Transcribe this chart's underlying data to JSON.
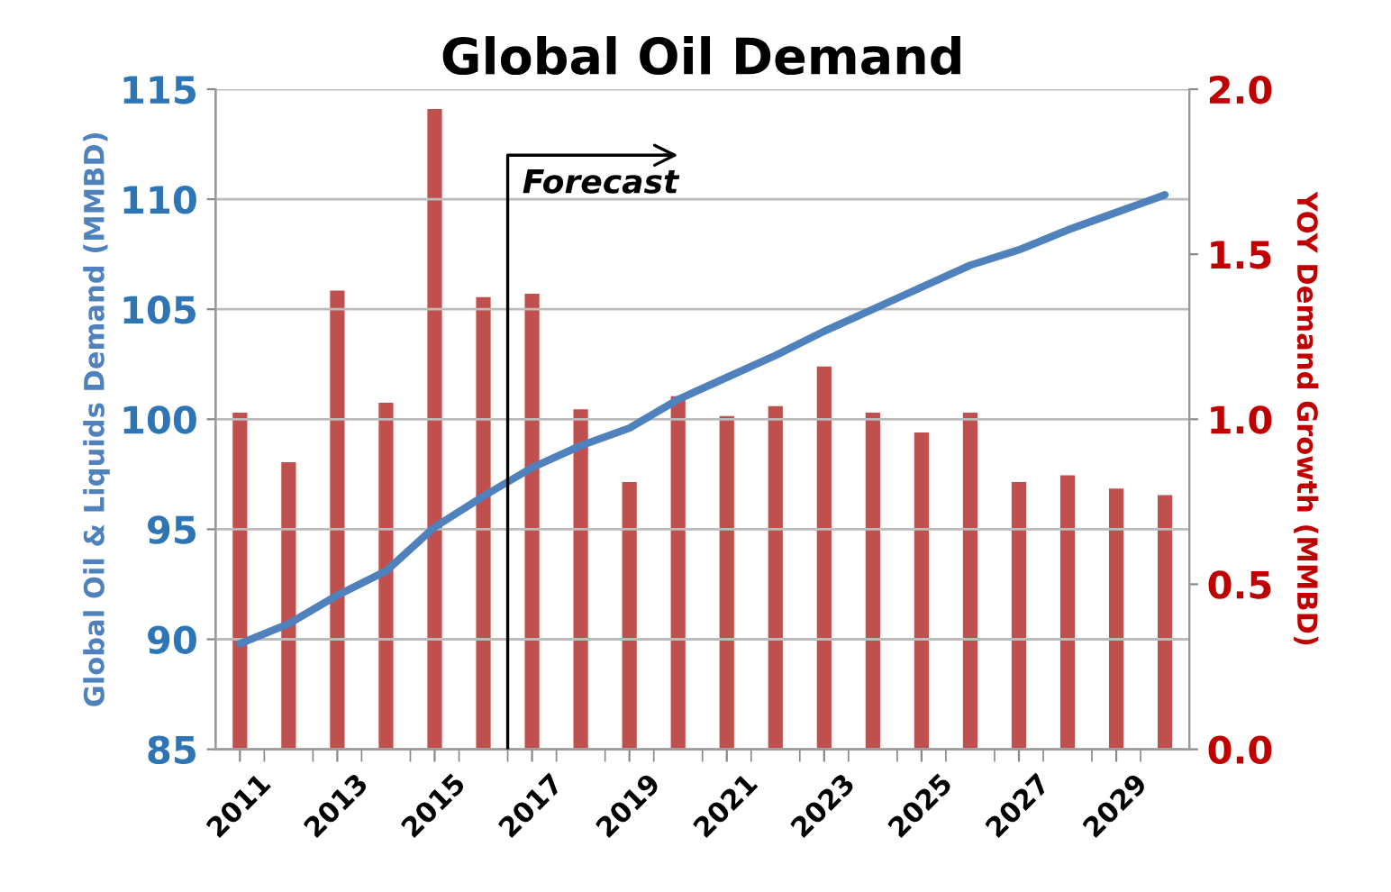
{
  "chart_data": {
    "type": "bar",
    "title": "Global Oil Demand",
    "ylabel": "Global Oil & Liquids Demand (MMBD)",
    "y2label": "YOY Demand Growth (MMBD)",
    "categories": [
      "2011",
      null,
      "2013",
      null,
      "2015",
      null,
      "2017",
      null,
      "2019",
      null,
      "2021",
      null,
      "2023",
      null,
      "2025",
      null,
      "2027",
      null,
      "2029",
      null
    ],
    "series": [
      {
        "axis": "y2",
        "color": "#c0504d",
        "values": [
          1.02,
          0.87,
          1.39,
          1.05,
          1.94,
          1.37,
          1.38,
          1.03,
          0.81,
          1.07,
          1.01,
          1.04,
          1.16,
          1.02,
          0.96,
          1.02,
          0.81,
          0.83,
          0.79,
          0.77
        ]
      },
      {
        "type": "line",
        "axis": "y",
        "color": "#4f81bd",
        "values": [
          89.8,
          90.7,
          92.0,
          93.1,
          95.1,
          96.5,
          97.8,
          98.8,
          99.6,
          100.9,
          101.9,
          102.9,
          104.0,
          105.0,
          106.0,
          107.0,
          107.7,
          108.6,
          109.4,
          110.2
        ]
      }
    ],
    "ylim": [
      85,
      115
    ],
    "yticks": [
      85,
      90,
      95,
      100,
      105,
      110,
      115
    ],
    "y2lim": [
      0,
      2
    ],
    "y2ticks": [
      {
        "value": 0,
        "label": "0.0"
      },
      {
        "value": 0.5,
        "label": "0.5"
      },
      {
        "value": 1,
        "label": "1.0"
      },
      {
        "value": 1.5,
        "label": "1.5"
      },
      {
        "value": 2,
        "label": "2.0"
      }
    ],
    "annotations": [
      "Forecast"
    ],
    "grid": "y",
    "legend": false
  }
}
